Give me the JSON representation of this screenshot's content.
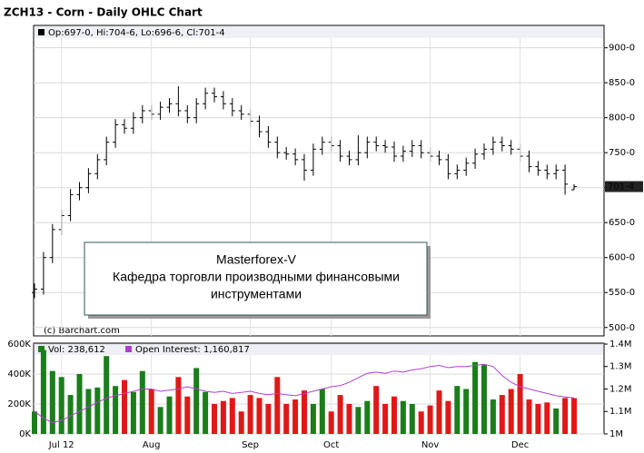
{
  "chart_data": [
    {
      "type": "ohlc",
      "title": "ZCH13 - Corn - Daily OHLC Chart",
      "legend_text": "Op:697-0, Hi:704-6, Lo:696-6, Cl:701-4",
      "credit": "(c) Barchart.com",
      "last_label": "701-4",
      "annotation": [
        "Masterforex-V",
        "Кафедра торговли производными финансовыми",
        "инструментами"
      ],
      "color": "#000000",
      "grid": true,
      "ylim": [
        488,
        932
      ],
      "yticks": [
        {
          "value": 500,
          "label": "500-0"
        },
        {
          "value": 550,
          "label": "550-0"
        },
        {
          "value": 600,
          "label": "600-0"
        },
        {
          "value": 650,
          "label": "650-0"
        },
        {
          "value": 700,
          "label": "700-0"
        },
        {
          "value": 750,
          "label": "750-0"
        },
        {
          "value": 800,
          "label": "800-0"
        },
        {
          "value": 850,
          "label": "850-0"
        },
        {
          "value": 900,
          "label": "900-0"
        }
      ],
      "open": [
        550,
        555,
        600,
        640,
        660,
        690,
        700,
        720,
        740,
        765,
        790,
        785,
        800,
        810,
        805,
        815,
        820,
        810,
        800,
        820,
        835,
        830,
        820,
        810,
        805,
        795,
        780,
        765,
        750,
        748,
        740,
        725,
        755,
        765,
        760,
        745,
        740,
        750,
        765,
        760,
        758,
        745,
        752,
        760,
        750,
        745,
        740,
        720,
        725,
        735,
        748,
        755,
        765,
        760,
        755,
        745,
        730,
        725,
        720,
        725,
        697
      ],
      "high": [
        563,
        608,
        648,
        668,
        698,
        708,
        728,
        748,
        773,
        798,
        798,
        808,
        818,
        818,
        823,
        828,
        845,
        818,
        828,
        843,
        843,
        838,
        828,
        818,
        813,
        803,
        788,
        773,
        758,
        756,
        748,
        763,
        773,
        773,
        768,
        753,
        775,
        773,
        773,
        768,
        766,
        760,
        768,
        768,
        758,
        753,
        748,
        733,
        743,
        756,
        763,
        773,
        773,
        768,
        763,
        753,
        738,
        733,
        733,
        733,
        704.75
      ],
      "low": [
        542,
        547,
        592,
        632,
        652,
        682,
        692,
        712,
        732,
        757,
        777,
        777,
        792,
        797,
        797,
        807,
        802,
        792,
        792,
        812,
        822,
        812,
        802,
        797,
        787,
        772,
        757,
        742,
        740,
        732,
        710,
        717,
        747,
        752,
        737,
        732,
        732,
        742,
        752,
        750,
        737,
        737,
        744,
        742,
        737,
        732,
        712,
        712,
        717,
        727,
        740,
        747,
        752,
        747,
        737,
        722,
        717,
        712,
        712,
        690,
        696.75
      ],
      "close": [
        555,
        600,
        640,
        660,
        690,
        700,
        720,
        740,
        765,
        790,
        785,
        800,
        810,
        805,
        815,
        820,
        810,
        800,
        820,
        835,
        830,
        820,
        810,
        805,
        795,
        780,
        765,
        750,
        748,
        740,
        725,
        755,
        765,
        760,
        745,
        740,
        750,
        765,
        760,
        758,
        745,
        752,
        760,
        750,
        745,
        740,
        720,
        725,
        735,
        748,
        755,
        765,
        760,
        755,
        745,
        730,
        725,
        720,
        725,
        705,
        701.5
      ]
    },
    {
      "type": "volume",
      "volume_label": "Vol: 238,612",
      "oi_label": "Open Interest: 1,160,817",
      "categories": [
        null,
        null,
        null,
        "Jul 12",
        null,
        null,
        null,
        null,
        null,
        null,
        null,
        null,
        null,
        "Aug",
        null,
        null,
        null,
        null,
        null,
        null,
        null,
        null,
        null,
        null,
        "Sep",
        null,
        null,
        null,
        null,
        null,
        null,
        null,
        null,
        "Oct",
        null,
        null,
        null,
        null,
        null,
        null,
        null,
        null,
        null,
        null,
        "Nov",
        null,
        null,
        null,
        null,
        null,
        null,
        null,
        null,
        null,
        "Dec",
        null,
        null,
        null,
        null,
        null,
        null
      ],
      "up_color": "#1b7d1b",
      "down_color": "#e01818",
      "oi_color": "#b040d0",
      "ylim": [
        0,
        606000
      ],
      "yticks": [
        {
          "value": 0,
          "label": "0K"
        },
        {
          "value": 200000,
          "label": "200K"
        },
        {
          "value": 400000,
          "label": "400K"
        },
        {
          "value": 600000,
          "label": "600K"
        }
      ],
      "y2lim": [
        1000000,
        1404000
      ],
      "y2ticks": [
        {
          "value": 1000000,
          "label": "1M"
        },
        {
          "value": 1100000,
          "label": "1.1M"
        },
        {
          "value": 1200000,
          "label": "1.2M"
        },
        {
          "value": 1300000,
          "label": "1.3M"
        },
        {
          "value": 1400000,
          "label": "1.4M"
        }
      ],
      "volume": [
        150000,
        560000,
        420000,
        380000,
        260000,
        400000,
        300000,
        310000,
        520000,
        320000,
        360000,
        280000,
        420000,
        300000,
        180000,
        250000,
        380000,
        250000,
        440000,
        280000,
        200000,
        220000,
        240000,
        150000,
        260000,
        240000,
        200000,
        380000,
        200000,
        230000,
        290000,
        200000,
        300000,
        150000,
        260000,
        200000,
        180000,
        220000,
        320000,
        200000,
        250000,
        220000,
        200000,
        150000,
        190000,
        290000,
        220000,
        320000,
        300000,
        480000,
        460000,
        230000,
        260000,
        300000,
        400000,
        230000,
        200000,
        210000,
        170000,
        240000,
        238612
      ],
      "open_interest": [
        1100000,
        1070000,
        1050000,
        1060000,
        1080000,
        1100000,
        1120000,
        1140000,
        1160000,
        1170000,
        1180000,
        1190000,
        1200000,
        1200000,
        1190000,
        1195000,
        1200000,
        1210000,
        1200000,
        1190000,
        1185000,
        1190000,
        1180000,
        1185000,
        1190000,
        1180000,
        1175000,
        1180000,
        1175000,
        1170000,
        1180000,
        1190000,
        1200000,
        1210000,
        1215000,
        1230000,
        1250000,
        1270000,
        1275000,
        1270000,
        1280000,
        1275000,
        1285000,
        1290000,
        1300000,
        1305000,
        1295000,
        1300000,
        1300000,
        1305000,
        1310000,
        1300000,
        1260000,
        1230000,
        1210000,
        1200000,
        1190000,
        1180000,
        1170000,
        1165000,
        1160817
      ]
    }
  ]
}
